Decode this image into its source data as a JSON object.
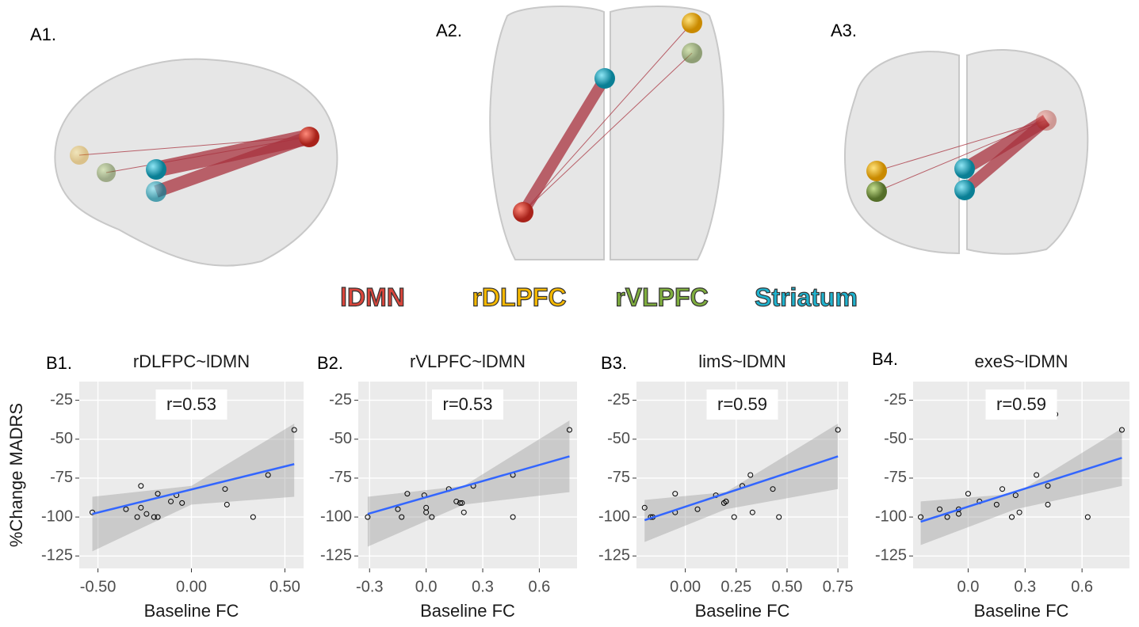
{
  "panels": [
    "A1.",
    "A2.",
    "A3."
  ],
  "legend": [
    {
      "name": "lDMN",
      "color": "#d9453b"
    },
    {
      "name": "rDLPFC",
      "color": "#f5b800"
    },
    {
      "name": "rVLPFC",
      "color": "#7fae3e"
    },
    {
      "name": "Striatum",
      "color": "#1fb3cf"
    }
  ],
  "chart_data": [
    {
      "type": "scatter",
      "label": "B1.",
      "title": "rDLFPC~lDMN",
      "annotation": "r=0.53",
      "xlabel": "Baseline FC",
      "ylabel": "%Change MADRS",
      "x": [
        -0.53,
        -0.35,
        -0.29,
        -0.27,
        -0.27,
        -0.24,
        -0.2,
        -0.18,
        -0.18,
        -0.11,
        -0.08,
        -0.05,
        0.18,
        0.19,
        0.33,
        0.41,
        0.55
      ],
      "values": [
        -97,
        -95,
        -100,
        -80,
        -94,
        -98,
        -100,
        -85,
        -100,
        -90,
        -86,
        -91,
        -82,
        -92,
        -100,
        -73,
        -44
      ],
      "fit": {
        "x": [
          -0.53,
          0.55
        ],
        "y": [
          -98,
          -66
        ]
      },
      "band": {
        "x": [
          -0.53,
          0,
          0.55
        ],
        "upper": [
          -87,
          -80,
          -40
        ],
        "lower": [
          -122,
          -92,
          -87
        ]
      },
      "xlim": [
        -0.6,
        0.6
      ],
      "xticks": [
        {
          "value": -0.5,
          "label": "-0.50"
        },
        {
          "value": 0,
          "label": "0.00"
        },
        {
          "value": 0.5,
          "label": "0.50"
        }
      ],
      "ylim": [
        -133,
        -13
      ],
      "yticks": [
        -125,
        -100,
        -75,
        -50,
        -25
      ],
      "color": "#3366ff",
      "grid": true
    },
    {
      "type": "scatter",
      "label": "B2.",
      "title": "rVLPFC~lDMN",
      "annotation": "r=0.53",
      "xlabel": "Baseline FC",
      "x": [
        -0.31,
        -0.15,
        -0.13,
        -0.1,
        -0.01,
        0,
        0,
        0.03,
        0.12,
        0.16,
        0.18,
        0.19,
        0.2,
        0.25,
        0.46,
        0.46,
        0.76
      ],
      "values": [
        -100,
        -95,
        -100,
        -85,
        -86,
        -94,
        -97,
        -100,
        -82,
        -90,
        -91,
        -91,
        -97,
        -80,
        -73,
        -100,
        -44
      ],
      "fit": {
        "x": [
          -0.31,
          0.76
        ],
        "y": [
          -98,
          -61
        ]
      },
      "band": {
        "x": [
          -0.31,
          0.2,
          0.76
        ],
        "upper": [
          -87,
          -80,
          -38
        ],
        "lower": [
          -119,
          -92,
          -84
        ]
      },
      "xlim": [
        -0.36,
        0.8
      ],
      "xticks": [
        -0.3,
        {
          "value": 0,
          "label": "0.0"
        },
        0.3,
        0.6
      ],
      "ylim": [
        -133,
        -13
      ],
      "yticks": [
        -125,
        -100,
        -75,
        -50,
        -25
      ],
      "color": "#3366ff",
      "grid": true
    },
    {
      "type": "scatter",
      "label": "B3.",
      "title": "limS~lDMN",
      "annotation": "r=0.59",
      "xlabel": "Baseline FC",
      "x": [
        -0.2,
        -0.17,
        -0.16,
        -0.05,
        -0.05,
        0.06,
        0.15,
        0.19,
        0.2,
        0.2,
        0.24,
        0.28,
        0.32,
        0.33,
        0.43,
        0.46,
        0.75
      ],
      "values": [
        -94,
        -100,
        -100,
        -85,
        -97,
        -95,
        -86,
        -91,
        -90,
        -90,
        -100,
        -80,
        -73,
        -97,
        -82,
        -100,
        -44
      ],
      "fit": {
        "x": [
          -0.2,
          0.75
        ],
        "y": [
          -102,
          -61
        ]
      },
      "band": {
        "x": [
          -0.2,
          0.2,
          0.75
        ],
        "upper": [
          -89,
          -84,
          -40
        ],
        "lower": [
          -116,
          -95,
          -82
        ]
      },
      "xlim": [
        -0.24,
        0.8
      ],
      "xticks": [
        {
          "value": 0,
          "label": "0.00"
        },
        0.25,
        {
          "value": 0.5,
          "label": "0.50"
        },
        0.75
      ],
      "ylim": [
        -133,
        -13
      ],
      "yticks": [
        -125,
        -100,
        -75,
        -50,
        -25
      ],
      "color": "#3366ff",
      "grid": true
    },
    {
      "type": "scatter",
      "label": "B4.",
      "title": "exeS~lDMN",
      "annotation": "r=0.59",
      "xlabel": "Baseline FC",
      "x": [
        -0.25,
        -0.15,
        -0.11,
        -0.05,
        -0.05,
        0,
        0.06,
        0.15,
        0.18,
        0.23,
        0.25,
        0.27,
        0.36,
        0.42,
        0.42,
        0.46,
        0.63,
        0.81
      ],
      "values": [
        -100,
        -95,
        -100,
        -95,
        -98,
        -85,
        -90,
        -92,
        -82,
        -100,
        -86,
        -97,
        -73,
        -80,
        -92,
        -34,
        -100,
        -44
      ],
      "fit": {
        "x": [
          -0.25,
          0.81
        ],
        "y": [
          -103,
          -62
        ]
      },
      "band": {
        "x": [
          -0.25,
          0.25,
          0.81
        ],
        "upper": [
          -90,
          -85,
          -43
        ],
        "lower": [
          -118,
          -95,
          -80
        ]
      },
      "xlim": [
        -0.29,
        0.85
      ],
      "xticks": [
        {
          "value": 0,
          "label": "0.0"
        },
        0.3,
        0.6
      ],
      "ylim": [
        -133,
        -13
      ],
      "yticks": [
        -125,
        -100,
        -75,
        -50,
        -25
      ],
      "color": "#3366ff",
      "grid": true
    }
  ]
}
